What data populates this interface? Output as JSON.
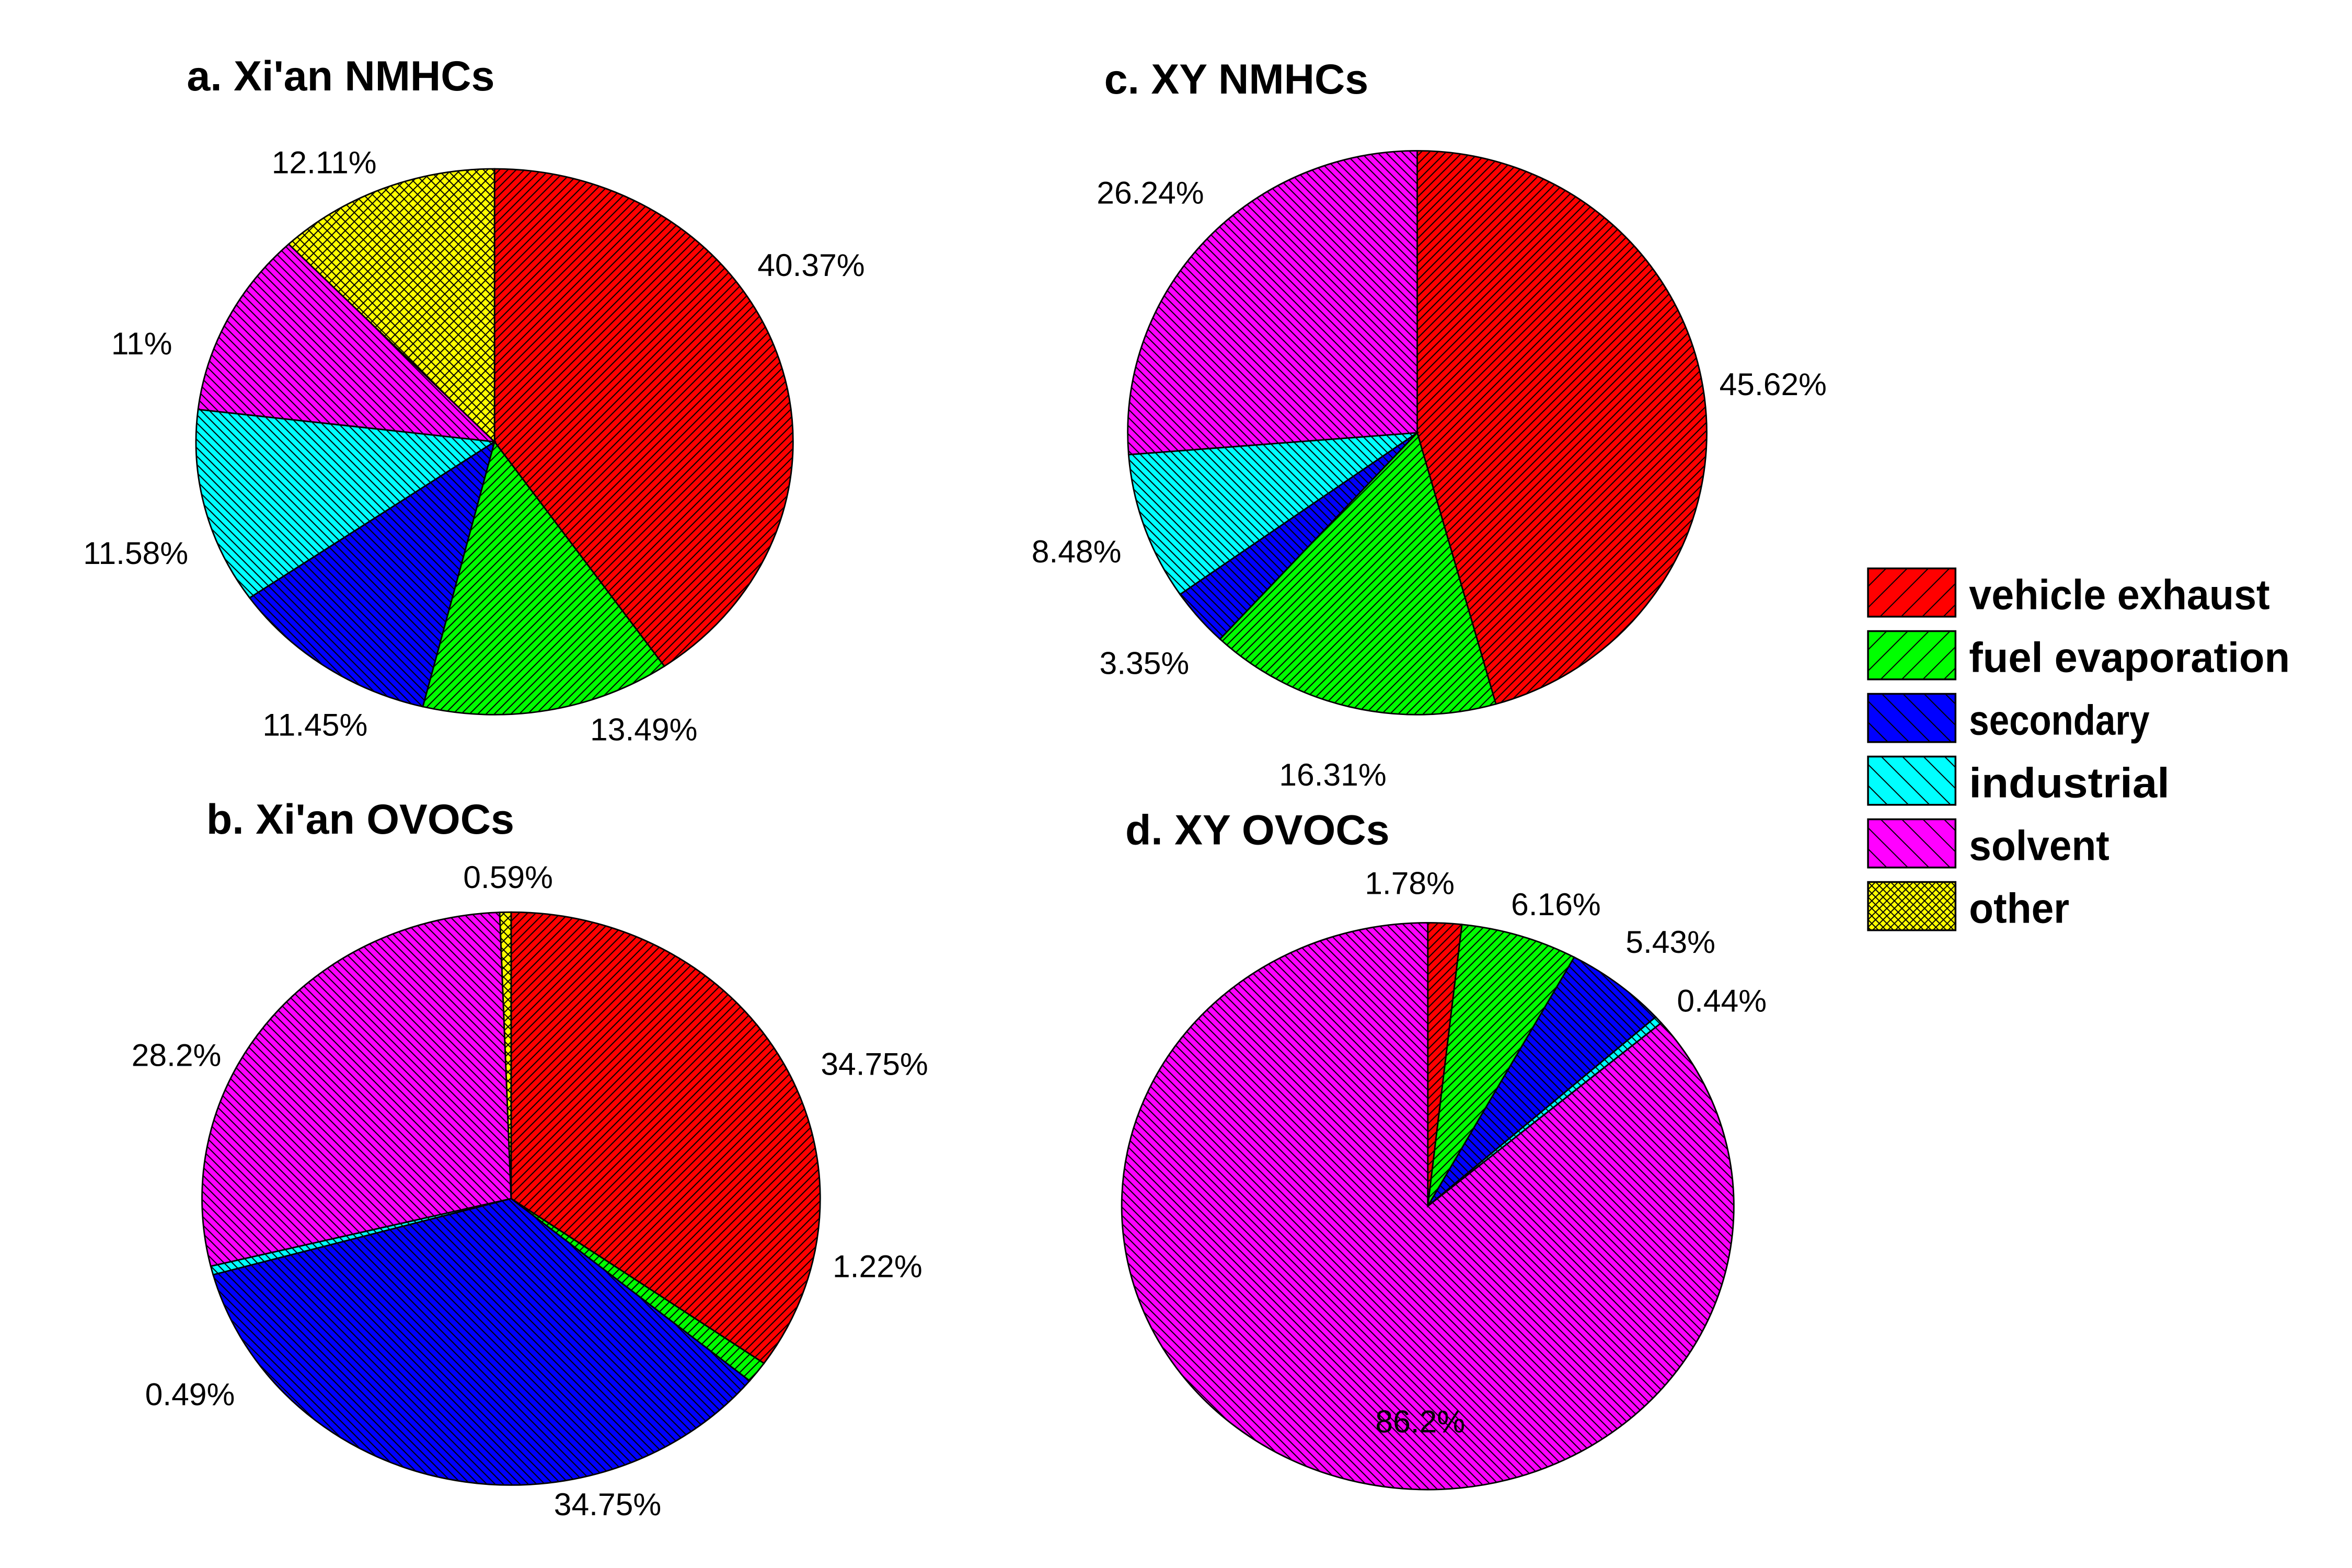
{
  "chart_data": [
    {
      "type": "pie",
      "title": "a. Xi'an NMHCs",
      "categories": [
        "vehicle exhaust",
        "fuel evaporation",
        "secondary",
        "industrial",
        "solvent",
        "other"
      ],
      "values": [
        40.37,
        13.49,
        11.45,
        11.58,
        11,
        12.11
      ],
      "labels": [
        "40.37%",
        "13.49%",
        "11.45%",
        "11.58%",
        "11%",
        "12.11%"
      ]
    },
    {
      "type": "pie",
      "title": "b. Xi'an OVOCs",
      "categories": [
        "vehicle exhaust",
        "fuel evaporation",
        "secondary",
        "industrial",
        "solvent",
        "other"
      ],
      "values": [
        34.75,
        1.22,
        34.75,
        0.49,
        28.2,
        0.59
      ],
      "labels": [
        "34.75%",
        "1.22%",
        "34.75%",
        "0.49%",
        "28.2%",
        "0.59%"
      ]
    },
    {
      "type": "pie",
      "title": "c. XY NMHCs",
      "categories": [
        "vehicle exhaust",
        "fuel evaporation",
        "secondary",
        "industrial",
        "solvent"
      ],
      "values": [
        45.62,
        16.31,
        3.35,
        8.48,
        26.24
      ],
      "labels": [
        "45.62%",
        "16.31%",
        "3.35%",
        "8.48%",
        "26.24%"
      ]
    },
    {
      "type": "pie",
      "title": "d. XY OVOCs",
      "categories": [
        "vehicle exhaust",
        "fuel evaporation",
        "secondary",
        "industrial",
        "solvent"
      ],
      "values": [
        1.78,
        6.16,
        5.43,
        0.44,
        86.2
      ],
      "labels": [
        "1.78%",
        "6.16%",
        "5.43%",
        "0.44%",
        "86.2%"
      ]
    }
  ],
  "legend": {
    "placement": "right",
    "items": [
      {
        "label": "vehicle exhaust",
        "color": "#ff0000",
        "hatch": "forward-diagonal"
      },
      {
        "label": "fuel evaporation",
        "color": "#00ff00",
        "hatch": "forward-diagonal"
      },
      {
        "label": "secondary",
        "color": "#0000ff",
        "hatch": "back-diagonal"
      },
      {
        "label": "industrial",
        "color": "#00ffff",
        "hatch": "back-diagonal"
      },
      {
        "label": "solvent",
        "color": "#ff00ff",
        "hatch": "back-diagonal"
      },
      {
        "label": "other",
        "color": "#ffff00",
        "hatch": "crosshatch"
      }
    ]
  }
}
